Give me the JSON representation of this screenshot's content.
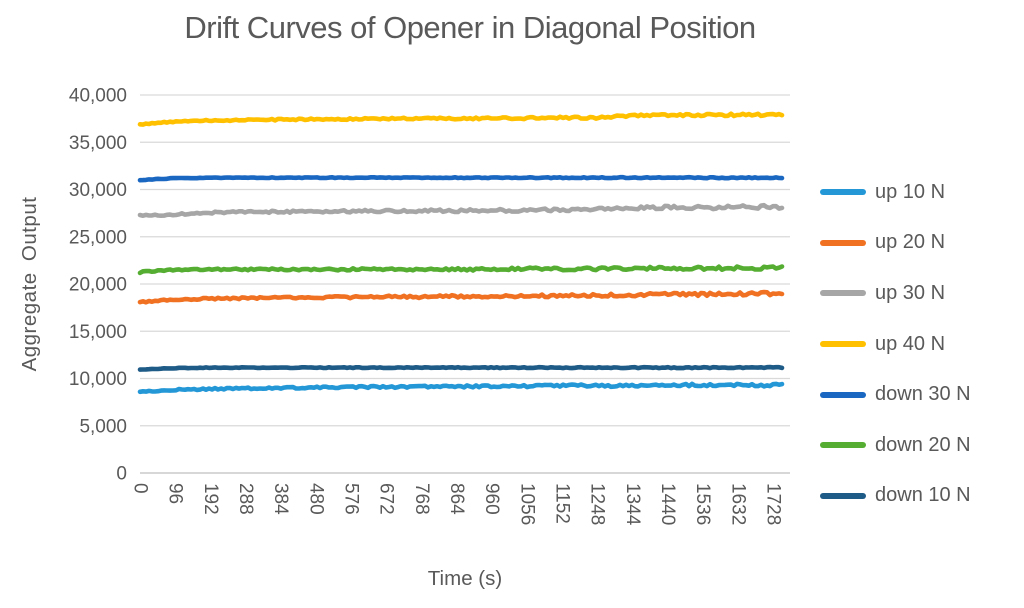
{
  "colors": {
    "text": "#595959",
    "gridline": "#D9D9D9",
    "axis_line": "#BFBFBF",
    "background": "#FFFFFF"
  },
  "chart_data": {
    "type": "line",
    "title": "Drift Curves of Opener in Diagonal Position",
    "xlabel": "Time (s)",
    "ylabel": "Aggregate Output",
    "xlim": [
      0,
      1756
    ],
    "ylim": [
      0,
      40000
    ],
    "grid": true,
    "legend_position": "right",
    "x_ticks": [
      0,
      96,
      192,
      288,
      384,
      480,
      576,
      672,
      768,
      864,
      960,
      1056,
      1152,
      1248,
      1344,
      1440,
      1536,
      1632,
      1728
    ],
    "y_tick_values": [
      0,
      5000,
      10000,
      15000,
      20000,
      25000,
      30000,
      35000,
      40000
    ],
    "y_tick_labels": [
      "0",
      "5,000",
      "10,000",
      "15,000",
      "20,000",
      "25,000",
      "30,000",
      "35,000",
      "40,000"
    ],
    "x": [
      0,
      96,
      192,
      288,
      384,
      480,
      576,
      672,
      768,
      864,
      960,
      1056,
      1152,
      1248,
      1344,
      1440,
      1536,
      1632,
      1728,
      1756
    ],
    "series": [
      {
        "name": "up 10 N",
        "color": "#2498D7",
        "values": [
          8600,
          8800,
          8900,
          8950,
          9000,
          9050,
          9100,
          9100,
          9150,
          9150,
          9200,
          9200,
          9250,
          9250,
          9250,
          9300,
          9300,
          9300,
          9300,
          9300
        ]
      },
      {
        "name": "up 20 N",
        "color": "#F07122",
        "values": [
          18100,
          18350,
          18450,
          18500,
          18550,
          18600,
          18600,
          18650,
          18650,
          18700,
          18700,
          18750,
          18750,
          18800,
          18850,
          18900,
          18900,
          18950,
          19000,
          19000
        ]
      },
      {
        "name": "up 30 N",
        "color": "#A6A6A6",
        "values": [
          27250,
          27350,
          27550,
          27600,
          27650,
          27650,
          27700,
          27700,
          27750,
          27750,
          27800,
          27800,
          27850,
          27900,
          28050,
          28100,
          28100,
          28150,
          28150,
          28150
        ]
      },
      {
        "name": "up 40 N",
        "color": "#FFC000",
        "values": [
          36900,
          37200,
          37300,
          37350,
          37400,
          37450,
          37450,
          37500,
          37500,
          37500,
          37550,
          37550,
          37600,
          37600,
          37800,
          37850,
          37900,
          37900,
          37900,
          37900
        ]
      },
      {
        "name": "down 30 N",
        "color": "#1A67C1",
        "values": [
          31000,
          31200,
          31250,
          31250,
          31250,
          31250,
          31250,
          31250,
          31250,
          31250,
          31250,
          31250,
          31250,
          31250,
          31250,
          31250,
          31250,
          31250,
          31250,
          31250
        ]
      },
      {
        "name": "down 20 N",
        "color": "#55AD32",
        "values": [
          21250,
          21500,
          21550,
          21550,
          21550,
          21550,
          21550,
          21550,
          21550,
          21550,
          21550,
          21600,
          21600,
          21600,
          21650,
          21650,
          21650,
          21700,
          21700,
          21700
        ]
      },
      {
        "name": "down 10 N",
        "color": "#1F5B87",
        "values": [
          10950,
          11100,
          11150,
          11150,
          11150,
          11150,
          11150,
          11150,
          11150,
          11150,
          11150,
          11150,
          11150,
          11150,
          11150,
          11150,
          11150,
          11150,
          11150,
          11150
        ]
      }
    ]
  }
}
